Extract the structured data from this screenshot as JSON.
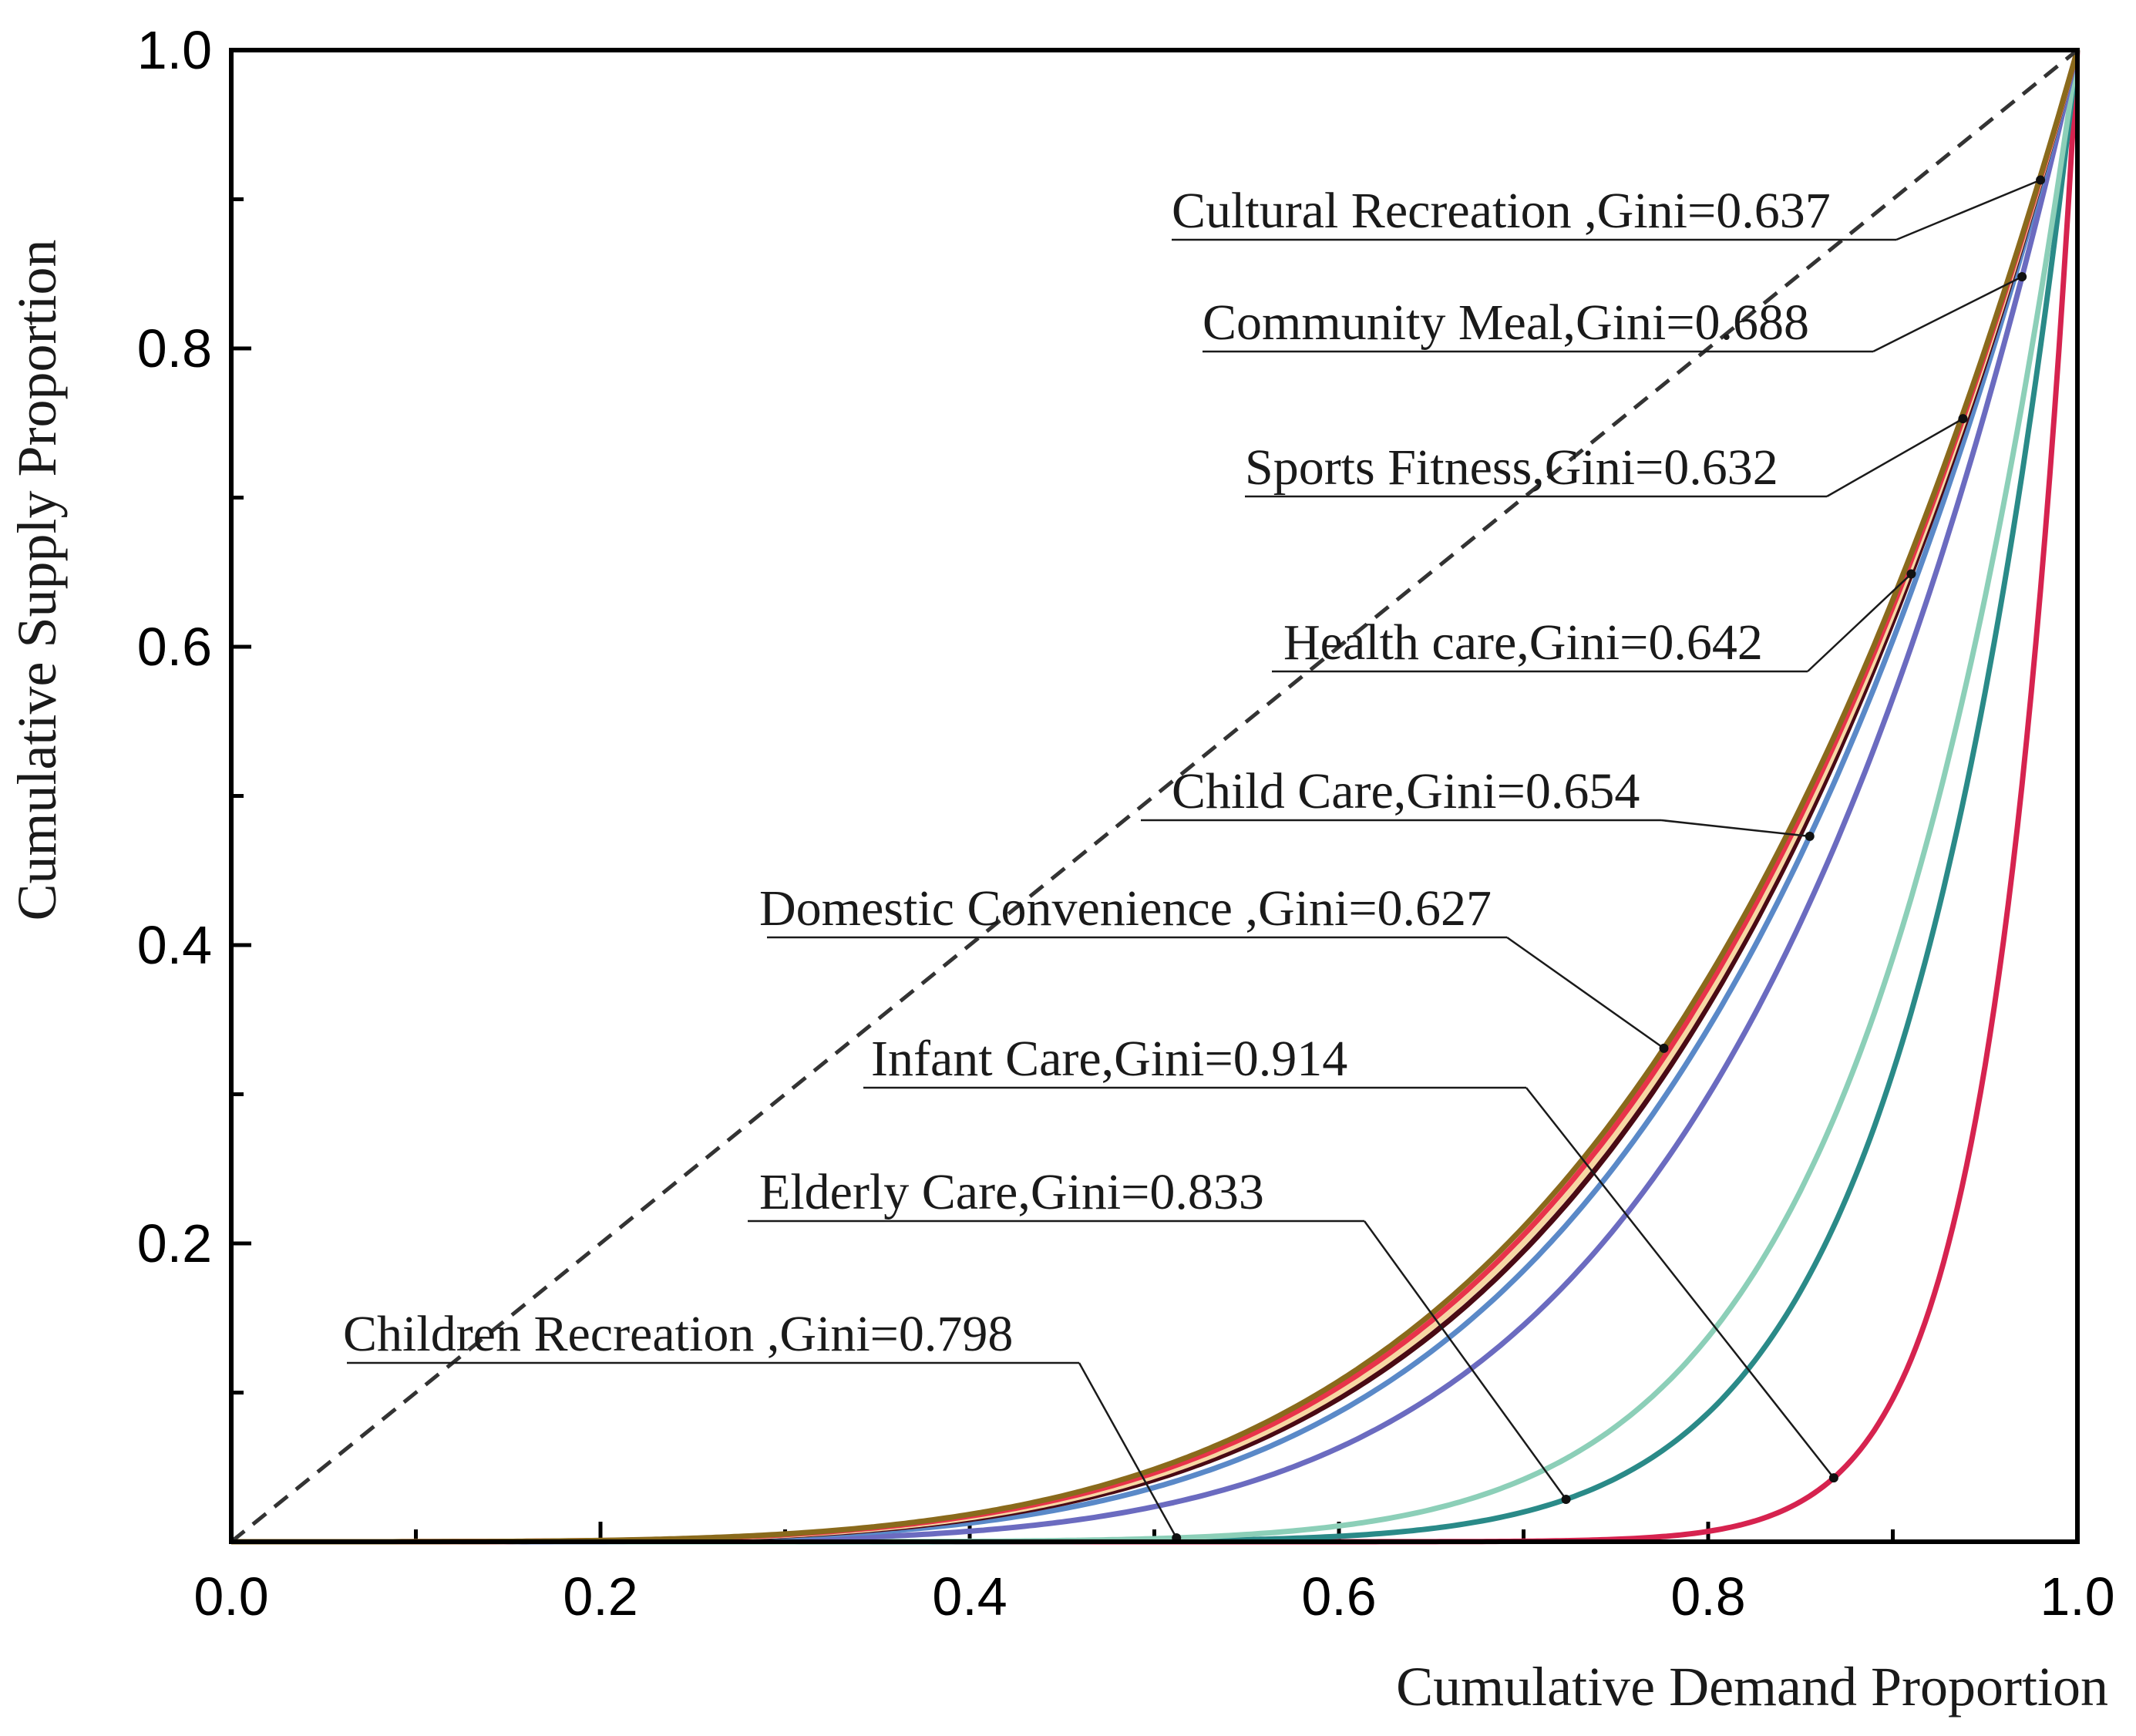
{
  "chart_data": {
    "type": "line",
    "title": "",
    "xlabel": "Cumulative Demand Proportion",
    "ylabel": "Cumulative Supply Proportion",
    "xlim": [
      0,
      1
    ],
    "ylim": [
      0,
      1
    ],
    "x_ticks": [
      "0.0",
      "0.2",
      "0.4",
      "0.6",
      "0.8",
      "1.0"
    ],
    "y_ticks": [
      "0.2",
      "0.4",
      "0.6",
      "0.8",
      "1.0"
    ],
    "grid": false,
    "equality_line": {
      "name": "Line of equality",
      "style": "dashed",
      "color": "#333333"
    },
    "series": [
      {
        "name": "Cultural Recreation",
        "gini": 0.637,
        "color": "#F6D7A3",
        "label": "Cultural Recreation ,Gini=0.637",
        "marker_x": 0.98
      },
      {
        "name": "Community Meal",
        "gini": 0.688,
        "color": "#6B6BC0",
        "label": "Community Meal,Gini=0.688",
        "marker_x": 0.97
      },
      {
        "name": "Sports Fitness",
        "gini": 0.632,
        "color": "#E8334A",
        "label": "Sports Fitness,Gini=0.632",
        "marker_x": 0.938
      },
      {
        "name": "Health care",
        "gini": 0.642,
        "color": "#4A0A14",
        "label": "Health care,Gini=0.642",
        "marker_x": 0.91
      },
      {
        "name": "Child  Care",
        "gini": 0.654,
        "color": "#5A89C8",
        "label": "Child  Care,Gini=0.654",
        "marker_x": 0.855
      },
      {
        "name": "Domestic  Convenience",
        "gini": 0.627,
        "color": "#8A6A1C",
        "label": "Domestic  Convenience ,Gini=0.627",
        "marker_x": 0.776
      },
      {
        "name": "Infant Care",
        "gini": 0.914,
        "color": "#D6234F",
        "label": "Infant Care,Gini=0.914",
        "marker_x": 0.868
      },
      {
        "name": "Elderly Care",
        "gini": 0.833,
        "color": "#2A8A88",
        "label": "Elderly Care,Gini=0.833",
        "marker_x": 0.723
      },
      {
        "name": "Children Recreation",
        "gini": 0.798,
        "color": "#8CCFB8",
        "label": "Children Recreation ,Gini=0.798",
        "marker_x": 0.512
      }
    ]
  }
}
